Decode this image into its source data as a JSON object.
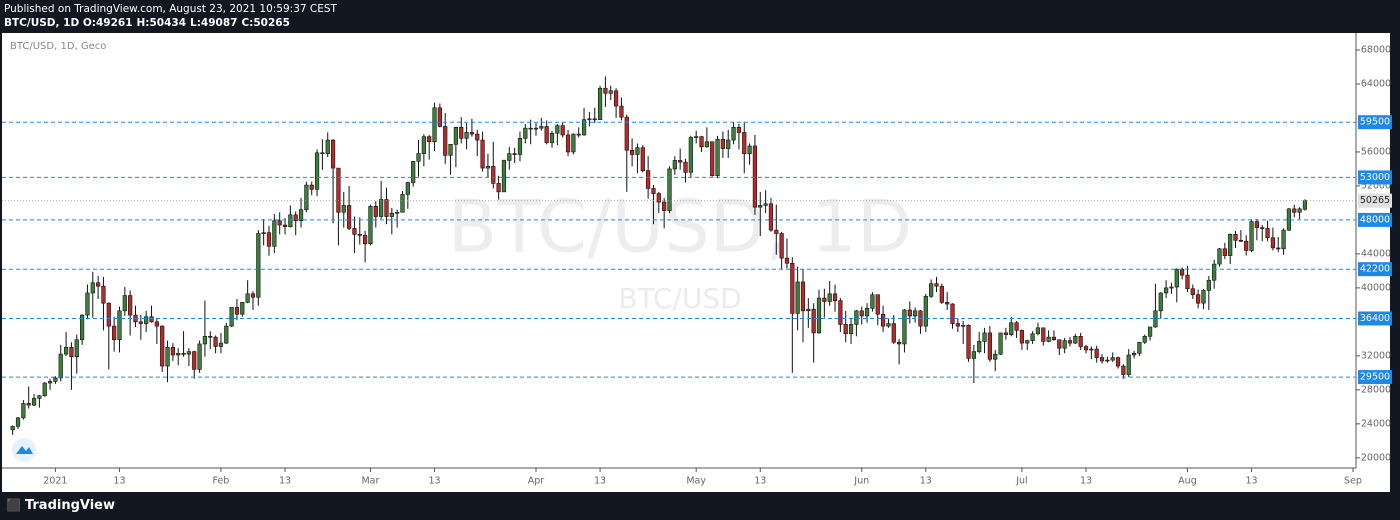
{
  "header": {
    "published": "Published on TradingView.com, August 23, 2021 10:59:37 CEST",
    "symbol": "BTC/USD, 1D",
    "ohlc": [
      {
        "label": "O:",
        "value": 49261
      },
      {
        "label": "H:",
        "value": 50434
      },
      {
        "label": "L:",
        "value": 49087
      },
      {
        "label": "C:",
        "value": 50265
      }
    ]
  },
  "footer": {
    "brand": "TradingView"
  },
  "chart_data": {
    "type": "candlestick",
    "title": "BTC/USD, 1D, Geco",
    "watermark": "BTC/USD, 1D",
    "watermark_sub": "BTC/USD",
    "up_color": "#3b7f3b",
    "down_color": "#b52a2a",
    "wick_color": "#111111",
    "level_color": "#1e88e5",
    "last_color": "#9e9e9e",
    "grid": false,
    "xlim": [
      "2020-12-22",
      "2021-09-01"
    ],
    "ylim": [
      18800,
      70000
    ],
    "yticks": [
      20000,
      24000,
      28000,
      32000,
      40000,
      44000,
      52000,
      56000,
      64000,
      68000
    ],
    "xticks": [
      {
        "value": "2021-01-01",
        "label": "2021"
      },
      {
        "value": "2021-01-13",
        "label": "13"
      },
      {
        "value": "2021-02-01",
        "label": "Feb"
      },
      {
        "value": "2021-02-13",
        "label": "13"
      },
      {
        "value": "2021-03-01",
        "label": "Mar"
      },
      {
        "value": "2021-03-13",
        "label": "13"
      },
      {
        "value": "2021-04-01",
        "label": "Apr"
      },
      {
        "value": "2021-04-13",
        "label": "13"
      },
      {
        "value": "2021-05-01",
        "label": "May"
      },
      {
        "value": "2021-05-13",
        "label": "13"
      },
      {
        "value": "2021-06-01",
        "label": "Jun"
      },
      {
        "value": "2021-06-13",
        "label": "13"
      },
      {
        "value": "2021-07-01",
        "label": "Jul"
      },
      {
        "value": "2021-07-13",
        "label": "13"
      },
      {
        "value": "2021-08-01",
        "label": "Aug"
      },
      {
        "value": "2021-08-13",
        "label": "13"
      },
      {
        "value": "2021-09-01",
        "label": "Sep"
      }
    ],
    "levels": [
      59500,
      53000,
      48000,
      42200,
      36400,
      29500
    ],
    "x": [
      "2020-12-24",
      "2020-12-25",
      "2020-12-26",
      "2020-12-27",
      "2020-12-28",
      "2020-12-29",
      "2020-12-30",
      "2020-12-31",
      "2021-01-01",
      "2021-01-02",
      "2021-01-03",
      "2021-01-04",
      "2021-01-05",
      "2021-01-06",
      "2021-01-07",
      "2021-01-08",
      "2021-01-09",
      "2021-01-10",
      "2021-01-11",
      "2021-01-12",
      "2021-01-13",
      "2021-01-14",
      "2021-01-15",
      "2021-01-16",
      "2021-01-17",
      "2021-01-18",
      "2021-01-19",
      "2021-01-20",
      "2021-01-21",
      "2021-01-22",
      "2021-01-23",
      "2021-01-24",
      "2021-01-25",
      "2021-01-26",
      "2021-01-27",
      "2021-01-28",
      "2021-01-29",
      "2021-01-30",
      "2021-01-31",
      "2021-02-01",
      "2021-02-02",
      "2021-02-03",
      "2021-02-04",
      "2021-02-05",
      "2021-02-06",
      "2021-02-07",
      "2021-02-08",
      "2021-02-09",
      "2021-02-10",
      "2021-02-11",
      "2021-02-12",
      "2021-02-13",
      "2021-02-14",
      "2021-02-15",
      "2021-02-16",
      "2021-02-17",
      "2021-02-18",
      "2021-02-19",
      "2021-02-20",
      "2021-02-21",
      "2021-02-22",
      "2021-02-23",
      "2021-02-24",
      "2021-02-25",
      "2021-02-26",
      "2021-02-27",
      "2021-02-28",
      "2021-03-01",
      "2021-03-02",
      "2021-03-03",
      "2021-03-04",
      "2021-03-05",
      "2021-03-06",
      "2021-03-07",
      "2021-03-08",
      "2021-03-09",
      "2021-03-10",
      "2021-03-11",
      "2021-03-12",
      "2021-03-13",
      "2021-03-14",
      "2021-03-15",
      "2021-03-16",
      "2021-03-17",
      "2021-03-18",
      "2021-03-19",
      "2021-03-20",
      "2021-03-21",
      "2021-03-22",
      "2021-03-23",
      "2021-03-24",
      "2021-03-25",
      "2021-03-26",
      "2021-03-27",
      "2021-03-28",
      "2021-03-29",
      "2021-03-30",
      "2021-03-31",
      "2021-04-01",
      "2021-04-02",
      "2021-04-03",
      "2021-04-04",
      "2021-04-05",
      "2021-04-06",
      "2021-04-07",
      "2021-04-08",
      "2021-04-09",
      "2021-04-10",
      "2021-04-11",
      "2021-04-12",
      "2021-04-13",
      "2021-04-14",
      "2021-04-15",
      "2021-04-16",
      "2021-04-17",
      "2021-04-18",
      "2021-04-19",
      "2021-04-20",
      "2021-04-21",
      "2021-04-22",
      "2021-04-23",
      "2021-04-24",
      "2021-04-25",
      "2021-04-26",
      "2021-04-27",
      "2021-04-28",
      "2021-04-29",
      "2021-04-30",
      "2021-05-01",
      "2021-05-02",
      "2021-05-03",
      "2021-05-04",
      "2021-05-05",
      "2021-05-06",
      "2021-05-07",
      "2021-05-08",
      "2021-05-09",
      "2021-05-10",
      "2021-05-11",
      "2021-05-12",
      "2021-05-13",
      "2021-05-14",
      "2021-05-15",
      "2021-05-16",
      "2021-05-17",
      "2021-05-18",
      "2021-05-19",
      "2021-05-20",
      "2021-05-21",
      "2021-05-22",
      "2021-05-23",
      "2021-05-24",
      "2021-05-25",
      "2021-05-26",
      "2021-05-27",
      "2021-05-28",
      "2021-05-29",
      "2021-05-30",
      "2021-05-31",
      "2021-06-01",
      "2021-06-02",
      "2021-06-03",
      "2021-06-04",
      "2021-06-05",
      "2021-06-06",
      "2021-06-07",
      "2021-06-08",
      "2021-06-09",
      "2021-06-10",
      "2021-06-11",
      "2021-06-12",
      "2021-06-13",
      "2021-06-14",
      "2021-06-15",
      "2021-06-16",
      "2021-06-17",
      "2021-06-18",
      "2021-06-19",
      "2021-06-20",
      "2021-06-21",
      "2021-06-22",
      "2021-06-23",
      "2021-06-24",
      "2021-06-25",
      "2021-06-26",
      "2021-06-27",
      "2021-06-28",
      "2021-06-29",
      "2021-06-30",
      "2021-07-01",
      "2021-07-02",
      "2021-07-03",
      "2021-07-04",
      "2021-07-05",
      "2021-07-06",
      "2021-07-07",
      "2021-07-08",
      "2021-07-09",
      "2021-07-10",
      "2021-07-11",
      "2021-07-12",
      "2021-07-13",
      "2021-07-14",
      "2021-07-15",
      "2021-07-16",
      "2021-07-17",
      "2021-07-18",
      "2021-07-19",
      "2021-07-20",
      "2021-07-21",
      "2021-07-22",
      "2021-07-23",
      "2021-07-24",
      "2021-07-25",
      "2021-07-26",
      "2021-07-27",
      "2021-07-28",
      "2021-07-29",
      "2021-07-30",
      "2021-07-31",
      "2021-08-01",
      "2021-08-02",
      "2021-08-03",
      "2021-08-04",
      "2021-08-05",
      "2021-08-06",
      "2021-08-07",
      "2021-08-08",
      "2021-08-09",
      "2021-08-10",
      "2021-08-11",
      "2021-08-12",
      "2021-08-13",
      "2021-08-14",
      "2021-08-15",
      "2021-08-16",
      "2021-08-17",
      "2021-08-18",
      "2021-08-19",
      "2021-08-20",
      "2021-08-21",
      "2021-08-22",
      "2021-08-23"
    ],
    "open": [
      23300,
      23700,
      24700,
      26400,
      26200,
      27000,
      27300,
      28800,
      29000,
      29400,
      32200,
      33000,
      31900,
      33900,
      36800,
      39400,
      40600,
      40200,
      38200,
      35500,
      33900,
      37300,
      39100,
      36800,
      36000,
      35800,
      36600,
      36000,
      35500,
      30800,
      33000,
      32100,
      32300,
      32200,
      32500,
      30400,
      33400,
      34300,
      34200,
      33100,
      33500,
      35500,
      37700,
      36900,
      38300,
      39300,
      38900,
      46400,
      46500,
      44900,
      47900,
      47400,
      47200,
      48600,
      47900,
      49200,
      52100,
      51600,
      55900,
      55800,
      57400,
      54100,
      48900,
      49700,
      47000,
      46300,
      46200,
      45200,
      49600,
      48400,
      50400,
      48400,
      48800,
      48900,
      51000,
      52400,
      54900,
      55800,
      57800,
      57200,
      61200,
      59000,
      55600,
      56900,
      58900,
      57600,
      58300,
      58100,
      57400,
      54100,
      54300,
      52300,
      51300,
      55000,
      55800,
      55700,
      57600,
      58800,
      58700,
      58800,
      59000,
      57100,
      58200,
      59100,
      58000,
      56000,
      58100,
      58000,
      59800,
      59900,
      59800,
      63500,
      62900,
      63200,
      61400,
      60100,
      56200,
      55700,
      56500,
      53800,
      51700,
      51100,
      50100,
      49100,
      54000,
      55000,
      54800,
      53600,
      57700,
      57800,
      56600,
      57200,
      53200,
      57500,
      56400,
      57400,
      58900,
      58300,
      55800,
      56700,
      49500,
      49700,
      49900,
      46800,
      46400,
      43500,
      42900,
      37000,
      40700,
      37300,
      37500,
      34700,
      38800,
      38400,
      39300,
      38500,
      35700,
      34600,
      35700,
      37300,
      36700,
      37600,
      39200,
      36900,
      35500,
      35800,
      33600,
      33400,
      37400,
      36700,
      37300,
      35500,
      39000,
      40500,
      40200,
      38300,
      38100,
      35800,
      35500,
      35600,
      31700,
      32500,
      33700,
      34700,
      31600,
      32200,
      34700,
      34500,
      35900,
      35000,
      33500,
      33800,
      34600,
      35300,
      33700,
      34200,
      33900,
      32900,
      33800,
      33500,
      34300,
      33100,
      32700,
      32800,
      31800,
      31400,
      31500,
      31800,
      30800,
      29800,
      32100,
      32300,
      33600,
      34300,
      35400,
      37300,
      39400,
      40000,
      40100,
      42200,
      41500,
      39900,
      39200,
      38200,
      39700,
      40900,
      42800,
      44600,
      43800,
      46300,
      45600,
      45500,
      44400,
      47800,
      47100,
      47000,
      45900,
      44700,
      44600,
      46800,
      49300,
      48900,
      49261
    ],
    "high": [
      23800,
      24800,
      26800,
      28400,
      27500,
      27400,
      28900,
      29300,
      29600,
      33300,
      34800,
      33600,
      34500,
      36900,
      40400,
      41900,
      41400,
      41300,
      38300,
      36600,
      37800,
      40100,
      39700,
      37900,
      36800,
      37300,
      37900,
      36400,
      35600,
      33800,
      33500,
      32900,
      34900,
      32900,
      32600,
      33800,
      38500,
      34900,
      34400,
      34700,
      35900,
      37700,
      38700,
      38300,
      40900,
      39600,
      46800,
      48100,
      47300,
      48700,
      48900,
      48200,
      49700,
      49000,
      50600,
      52500,
      52500,
      56300,
      57500,
      58300,
      57500,
      54100,
      51300,
      52000,
      48400,
      48300,
      46700,
      49800,
      50200,
      52600,
      51800,
      49400,
      49200,
      51400,
      52500,
      54900,
      57400,
      58100,
      58000,
      61800,
      61700,
      60600,
      56900,
      58900,
      60100,
      59400,
      59900,
      58600,
      58400,
      55800,
      57200,
      53200,
      55100,
      56600,
      56500,
      58400,
      59300,
      59800,
      59400,
      60000,
      59700,
      58500,
      59300,
      59500,
      58600,
      58200,
      58900,
      61200,
      60700,
      61200,
      63800,
      64900,
      63800,
      63500,
      62400,
      60400,
      57600,
      57000,
      56800,
      55500,
      52100,
      51300,
      50600,
      54300,
      55500,
      56400,
      55200,
      57900,
      58500,
      57900,
      58900,
      57200,
      57900,
      58400,
      58600,
      59500,
      59300,
      59500,
      57000,
      58000,
      51300,
      51500,
      50600,
      49800,
      46600,
      45800,
      43600,
      42500,
      42200,
      38800,
      38200,
      39800,
      39900,
      40800,
      40400,
      38800,
      37300,
      36400,
      37400,
      37800,
      38200,
      39500,
      39200,
      37900,
      36400,
      36800,
      34000,
      37500,
      38400,
      37700,
      37400,
      39300,
      41000,
      41300,
      40500,
      39500,
      38200,
      36400,
      36100,
      35700,
      33300,
      34800,
      35300,
      35500,
      32700,
      34700,
      35300,
      36600,
      36100,
      35100,
      33900,
      34900,
      35900,
      35300,
      35000,
      35000,
      33900,
      34100,
      34200,
      34600,
      34700,
      33300,
      33100,
      33200,
      32200,
      31900,
      32400,
      31900,
      31000,
      32800,
      32600,
      33600,
      34500,
      35400,
      40500,
      39500,
      40900,
      40600,
      42300,
      42400,
      42600,
      40400,
      39800,
      39900,
      41400,
      43300,
      44700,
      45300,
      46400,
      46700,
      46800,
      46200,
      48100,
      48100,
      47400,
      47900,
      47100,
      46000,
      47000,
      49400,
      49800,
      49500,
      50434
    ],
    "low": [
      22700,
      23400,
      24500,
      25800,
      26100,
      25900,
      27200,
      28000,
      28700,
      29000,
      32000,
      28000,
      29900,
      33300,
      36300,
      36500,
      38700,
      35000,
      30400,
      32500,
      32400,
      36700,
      34400,
      35400,
      33900,
      34800,
      35900,
      33400,
      30100,
      28900,
      31400,
      30900,
      31900,
      30800,
      29300,
      30000,
      31900,
      32800,
      32300,
      32300,
      33400,
      35400,
      36200,
      36600,
      38200,
      37400,
      37900,
      45000,
      43800,
      44100,
      46300,
      46300,
      47100,
      46200,
      47100,
      48900,
      50900,
      50800,
      53900,
      55400,
      47600,
      45000,
      47100,
      46800,
      44100,
      45100,
      43000,
      45000,
      47100,
      48100,
      47500,
      46300,
      47100,
      48900,
      49300,
      51900,
      53100,
      54300,
      55100,
      56100,
      58900,
      54600,
      53300,
      54200,
      57000,
      56300,
      57800,
      55500,
      53700,
      53000,
      51700,
      50400,
      51300,
      53900,
      54700,
      54900,
      57000,
      56900,
      57900,
      58500,
      56900,
      56500,
      56800,
      57700,
      55500,
      55700,
      57700,
      57900,
      59000,
      59400,
      59800,
      61300,
      62100,
      60000,
      59700,
      51300,
      54300,
      53500,
      53600,
      50500,
      47500,
      48800,
      47000,
      48800,
      53300,
      53900,
      52400,
      53000,
      57000,
      56000,
      56500,
      53100,
      52900,
      55300,
      55300,
      56900,
      56300,
      53500,
      54500,
      48600,
      46100,
      48800,
      46600,
      43900,
      42200,
      42300,
      30000,
      35000,
      33600,
      35300,
      31200,
      34600,
      36500,
      37900,
      37200,
      34800,
      33600,
      33400,
      34300,
      35700,
      35900,
      37200,
      35600,
      34800,
      35300,
      33400,
      31000,
      32400,
      35800,
      35900,
      34600,
      34800,
      38800,
      39500,
      38100,
      37400,
      35200,
      34800,
      33400,
      31300,
      28800,
      32300,
      32300,
      31300,
      30200,
      32100,
      33900,
      34300,
      34100,
      32700,
      32700,
      33400,
      34400,
      33200,
      33600,
      33800,
      32100,
      32300,
      33100,
      33400,
      32700,
      32300,
      31600,
      31200,
      31100,
      31200,
      31300,
      30500,
      29300,
      29500,
      31700,
      32000,
      33400,
      33800,
      35300,
      36400,
      38800,
      39300,
      38300,
      41000,
      39500,
      38700,
      37600,
      37500,
      37400,
      39900,
      42500,
      43400,
      42800,
      44700,
      45400,
      43800,
      44200,
      45600,
      45500,
      45500,
      44400,
      44200,
      43900,
      46700,
      48300,
      48100,
      49087
    ],
    "close": [
      23700,
      24700,
      26400,
      26200,
      27000,
      27300,
      28800,
      29000,
      29400,
      32200,
      33000,
      31900,
      33900,
      36800,
      39400,
      40600,
      40200,
      38200,
      35500,
      33900,
      37300,
      39100,
      36800,
      36000,
      35800,
      36600,
      36000,
      35500,
      30800,
      33000,
      32100,
      32300,
      32200,
      32500,
      30400,
      33400,
      34300,
      34200,
      33100,
      33500,
      35500,
      37700,
      36900,
      38300,
      39300,
      38900,
      46400,
      46500,
      44900,
      47900,
      47400,
      47200,
      48600,
      47900,
      49200,
      52100,
      51600,
      55900,
      55800,
      57400,
      54100,
      48900,
      49700,
      47000,
      46300,
      46200,
      45200,
      49600,
      48400,
      50400,
      48400,
      48800,
      48900,
      51000,
      52400,
      54900,
      55800,
      57800,
      57200,
      61200,
      59000,
      55600,
      56900,
      58900,
      57600,
      58300,
      58100,
      57400,
      54100,
      54300,
      52300,
      51300,
      55000,
      55800,
      55700,
      57600,
      58800,
      58700,
      58800,
      59000,
      57100,
      58200,
      59100,
      58000,
      56000,
      58100,
      58000,
      59800,
      59900,
      59800,
      63500,
      62900,
      63200,
      61400,
      60100,
      56200,
      55700,
      56500,
      53800,
      51700,
      51100,
      50100,
      49100,
      54000,
      55000,
      54800,
      53600,
      57700,
      57800,
      56600,
      57200,
      53200,
      57500,
      56400,
      57400,
      58900,
      58300,
      55800,
      56700,
      49500,
      49700,
      49900,
      46800,
      46400,
      43500,
      42900,
      37000,
      40700,
      37300,
      37500,
      34700,
      38800,
      38400,
      39300,
      38500,
      35700,
      34600,
      35700,
      37300,
      36700,
      37600,
      39200,
      36900,
      35500,
      35800,
      33600,
      33400,
      37400,
      36700,
      37300,
      35500,
      39000,
      40500,
      40200,
      38300,
      38100,
      35800,
      35500,
      35600,
      31700,
      32500,
      33700,
      34700,
      31600,
      32200,
      34700,
      34500,
      35900,
      35000,
      33500,
      33800,
      34600,
      35300,
      33700,
      34200,
      33900,
      32900,
      33800,
      33500,
      34300,
      33100,
      32700,
      32800,
      31800,
      31400,
      31500,
      31800,
      30800,
      29800,
      32100,
      32300,
      33600,
      34300,
      35400,
      37300,
      39400,
      40000,
      40100,
      42200,
      41500,
      39900,
      39200,
      38200,
      39700,
      40900,
      42800,
      44600,
      43800,
      46300,
      45600,
      45500,
      44400,
      47800,
      47100,
      47000,
      45900,
      44700,
      44600,
      46800,
      49300,
      48900,
      49300,
      50265
    ]
  }
}
